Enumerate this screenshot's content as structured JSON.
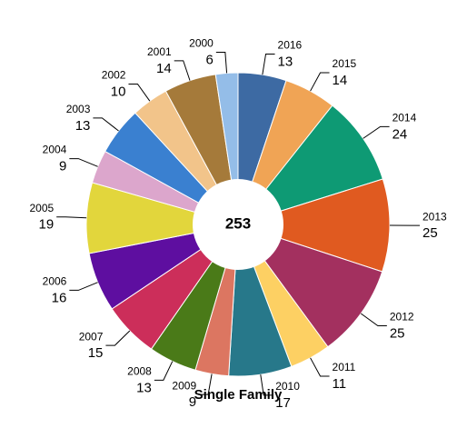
{
  "chart_data": {
    "type": "donut",
    "total": 253,
    "label": "Single Family",
    "categories": [
      "2016",
      "2015",
      "2014",
      "2013",
      "2012",
      "2011",
      "2010",
      "2009",
      "2008",
      "2007",
      "2006",
      "2005",
      "2004",
      "2003",
      "2002",
      "2001",
      "2000"
    ],
    "values": [
      13,
      14,
      24,
      25,
      25,
      11,
      17,
      9,
      13,
      15,
      16,
      19,
      9,
      13,
      10,
      14,
      6
    ],
    "colors": [
      "#3d6aa3",
      "#f0a455",
      "#0e9a74",
      "#e05a20",
      "#a3305f",
      "#fdd063",
      "#27788a",
      "#dc7661",
      "#4a7a18",
      "#cc2e5a",
      "#5e0ea0",
      "#e2d63c",
      "#dca6cc",
      "#3a80d0",
      "#f2c48a",
      "#a57a3a",
      "#94bde8"
    ]
  }
}
